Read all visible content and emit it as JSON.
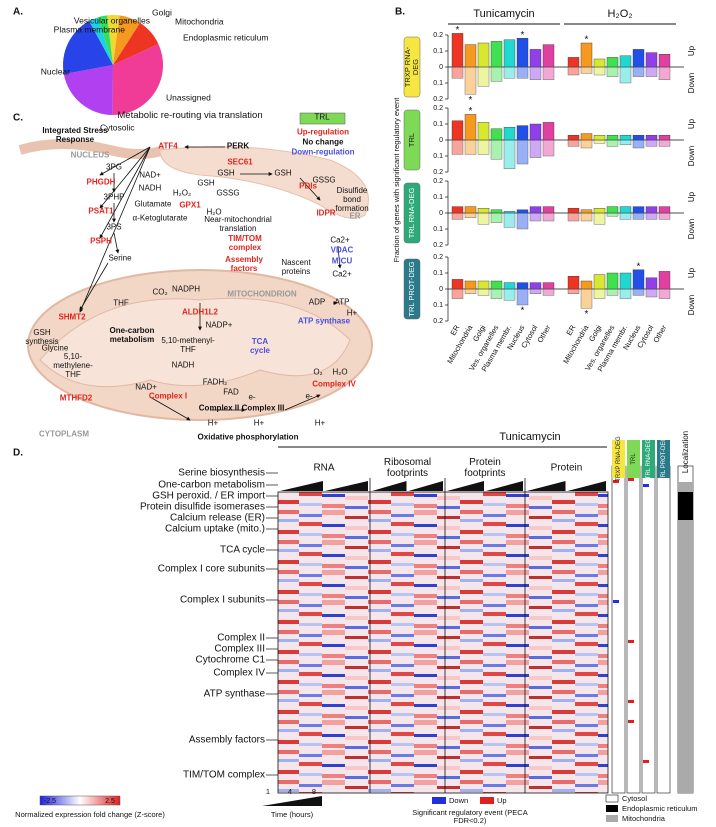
{
  "panel_labels": [
    "A.",
    "B.",
    "C.",
    "D."
  ],
  "chart_data": [
    {
      "type": "pie",
      "categories": [
        "Golgi",
        "Mitochondria",
        "Endoplasmic reticulum",
        "Unassigned",
        "Cytosolic",
        "Nuclear",
        "Plasma membrane",
        "Vesicular organelles"
      ],
      "values": [
        4,
        7,
        9,
        32,
        22,
        20,
        3,
        3
      ],
      "colors": [
        "#f0d830",
        "#f59a1e",
        "#ee3524",
        "#f03c96",
        "#b040f0",
        "#2844e8",
        "#20d0e0",
        "#30e060"
      ]
    },
    {
      "type": "bar",
      "ylabel": "Fraction of genes with significant regulatory event",
      "groups": [
        "Tunicamycin",
        "H₂O₂"
      ],
      "categories": [
        "ER",
        "Mitochondria",
        "Golgi",
        "Ves. organelles",
        "Plasma membr.",
        "Nucleus",
        "Cytosol",
        "Other"
      ],
      "colors": [
        "#ee3524",
        "#f59a1e",
        "#d8e830",
        "#40e050",
        "#20d8d0",
        "#2050e8",
        "#9040e8",
        "#e040a0"
      ],
      "up_label": "Up",
      "down_label": "Down",
      "star": "*",
      "ylim": [
        -0.2,
        0.2
      ],
      "yticks": [
        {
          "value": -0.2,
          "label": "0.2"
        },
        {
          "value": -0.1,
          "label": "0.1"
        },
        0,
        0.1,
        0.2
      ],
      "panels": [
        {
          "label": "TRXP RNA-DEG",
          "series": [
            {
              "name": "Tunicamycin",
              "up": [
                0.21,
                0.14,
                0.15,
                0.16,
                0.17,
                0.18,
                0.11,
                0.14
              ],
              "down": [
                -0.07,
                -0.17,
                -0.12,
                -0.09,
                -0.07,
                -0.07,
                -0.08,
                -0.08
              ],
              "starred_up": [
                0,
                5
              ],
              "starred_down": [
                1
              ]
            },
            {
              "name": "H₂O₂",
              "up": [
                0.06,
                0.15,
                0.05,
                0.06,
                0.07,
                0.11,
                0.09,
                0.08
              ],
              "down": [
                -0.05,
                -0.04,
                -0.05,
                -0.06,
                -0.1,
                -0.06,
                -0.06,
                -0.08
              ],
              "starred_up": [
                1
              ],
              "starred_down": []
            }
          ]
        },
        {
          "label": "TRL",
          "series": [
            {
              "name": "Tunicamycin",
              "up": [
                0.12,
                0.16,
                0.11,
                0.07,
                0.08,
                0.09,
                0.1,
                0.11
              ],
              "down": [
                -0.09,
                -0.09,
                -0.09,
                -0.12,
                -0.18,
                -0.15,
                -0.11,
                -0.1
              ],
              "starred_up": [
                1
              ],
              "starred_down": []
            },
            {
              "name": "H₂O₂",
              "up": [
                0.03,
                0.04,
                0.03,
                0.03,
                0.03,
                0.03,
                0.03,
                0.03
              ],
              "down": [
                -0.04,
                -0.05,
                -0.02,
                -0.04,
                -0.03,
                -0.05,
                -0.04,
                -0.04
              ],
              "starred_up": [],
              "starred_down": []
            }
          ]
        },
        {
          "label": "TRL RNA-DEG",
          "series": [
            {
              "name": "Tunicamycin",
              "up": [
                0.04,
                0.04,
                0.03,
                0.02,
                0.01,
                0.02,
                0.04,
                0.04
              ],
              "down": [
                -0.04,
                -0.03,
                -0.07,
                -0.06,
                -0.09,
                -0.1,
                -0.05,
                -0.05
              ],
              "starred_up": [],
              "starred_down": []
            },
            {
              "name": "H₂O₂",
              "up": [
                0.03,
                0.02,
                0.03,
                0.04,
                0.04,
                0.04,
                0.04,
                0.04
              ],
              "down": [
                -0.05,
                -0.05,
                -0.07,
                -0.02,
                -0.04,
                -0.04,
                -0.04,
                -0.04
              ],
              "starred_up": [],
              "starred_down": []
            }
          ]
        },
        {
          "label": "TRL PROT-DEG",
          "series": [
            {
              "name": "Tunicamycin",
              "up": [
                0.06,
                0.05,
                0.05,
                0.05,
                0.04,
                0.04,
                0.04,
                0.04
              ],
              "down": [
                -0.06,
                -0.03,
                -0.04,
                -0.06,
                -0.07,
                -0.1,
                -0.03,
                -0.04
              ],
              "starred_up": [],
              "starred_down": [
                5
              ]
            },
            {
              "name": "H₂O₂",
              "up": [
                0.08,
                0.05,
                0.09,
                0.1,
                0.1,
                0.12,
                0.07,
                0.11
              ],
              "down": [
                -0.03,
                -0.12,
                -0.06,
                -0.04,
                -0.06,
                -0.04,
                -0.05,
                -0.06
              ],
              "starred_up": [
                5
              ],
              "starred_down": [
                1
              ]
            }
          ]
        }
      ]
    }
  ],
  "diagram": {
    "title": "Metabolic re-routing via translation",
    "legend": {
      "title": "TRL",
      "items": [
        "Up-regulation",
        "No change",
        "Down-regulation"
      ]
    },
    "nodes": [
      "Integrated Stress Response",
      "NUCLEUS",
      "ATF4",
      "PERK",
      "SEC61",
      "3PG",
      "NAD+",
      "PHGDH",
      "NADH",
      "3PHP",
      "Glutamate",
      "PSAT1",
      "α-Ketoglutarate",
      "3PS",
      "PSPH",
      "Serine",
      "GSH",
      "GSH",
      "PDIs",
      "GSSG",
      "Disulfide bond formation",
      "ER",
      "IDPR",
      "GSH",
      "H₂O₂",
      "GSSG",
      "GPX1",
      "H₂O",
      "Near-mitochondrial translation",
      "Ca2+",
      "VDAC",
      "MICU",
      "Ca2+",
      "TIM/TOM complex",
      "Assembly factors",
      "Nascent proteins",
      "MITOCHONDRION",
      "GSH synthesis",
      "SHMT2",
      "THF",
      "CO₂",
      "NADPH",
      "ALDH1L2",
      "NADP+",
      "One-carbon metabolism",
      "Glycine",
      "5,10-methylene-THF",
      "5,10-methenyl-THF",
      "NADH",
      "MTHFD2",
      "NAD+",
      "Complex I",
      "TCA cycle",
      "FADH₂",
      "FAD",
      "Complex II",
      "e-",
      "Complex III",
      "O₂",
      "H₂O",
      "Complex IV",
      "e-",
      "H+",
      "H+",
      "H+",
      "ADP",
      "ATP",
      "H+",
      "ATP synthase",
      "Oxidative phosphorylation",
      "CYTOPLASM"
    ]
  },
  "heatmap": {
    "title": "Tunicamycin",
    "columns": [
      "RNA",
      "Ribosomal footprints",
      "Protein footprints",
      "Protein"
    ],
    "rows": [
      "Serine biosynthesis",
      "One-carbon metabolism",
      "GSH peroxid. / ER import",
      "Protein disulfide isomerases",
      "Calcium release (ER)",
      "Calcium uptake (mito.)",
      "TCA cycle",
      "Complex I core subunits",
      "Complex I subunits",
      "Complex II",
      "Complex III",
      "Cytochrome C1",
      "Complex IV",
      "ATP synthase",
      "Assembly factors",
      "TIM/TOM complex"
    ],
    "event_columns": [
      "TRXP RNA-DEG",
      "TRL",
      "TRL RNA-DEG",
      "TRL PROT-DEG"
    ],
    "localization_title": "Localization",
    "colorbar": {
      "ticks": [
        -2.5,
        2.5
      ],
      "label": "Normalized expression fold change (Z-score)"
    },
    "time": {
      "label": "Time (hours)",
      "ticks": [
        1,
        4,
        8
      ]
    },
    "events": {
      "items": [
        "Down",
        "Up"
      ],
      "label": "Significant regulatory event (PECA FDR<0.2)"
    },
    "localization": [
      "Cytosol",
      "Endoplasmic reticulum",
      "Mitochondria"
    ]
  }
}
